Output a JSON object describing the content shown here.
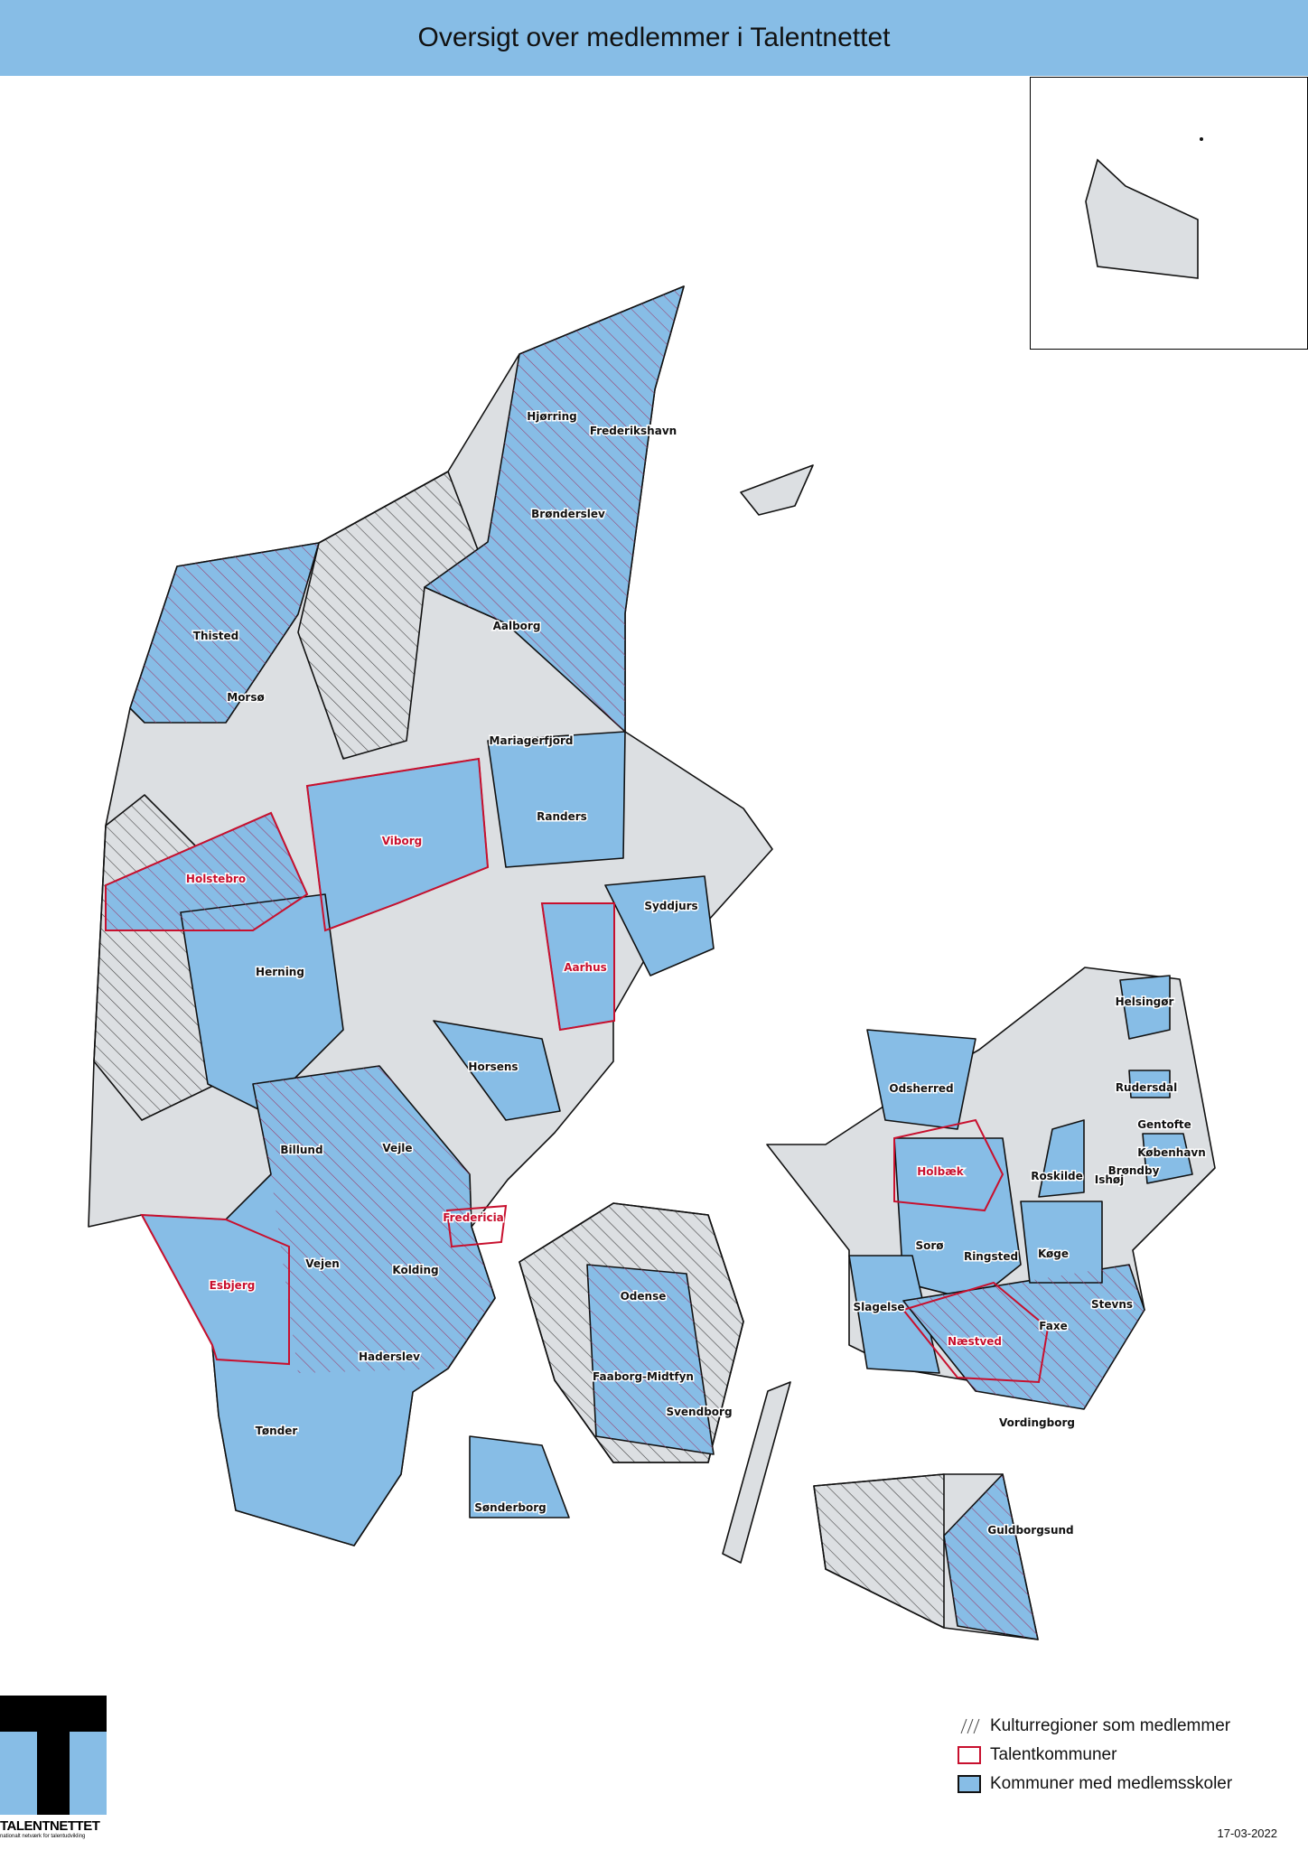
{
  "title": "Oversigt over medlemmer i Talentnettet",
  "colors": {
    "member_blue": "#87bde6",
    "land_grey": "#dcdfe2",
    "talent_red": "#c8102e",
    "header_blue": "#87bde6"
  },
  "labels": {
    "hjorring": "Hjørring",
    "frederikshavn": "Frederikshavn",
    "bronderslev": "Brønderslev",
    "aalborg": "Aalborg",
    "thisted": "Thisted",
    "morso": "Morsø",
    "mariagerfjord": "Mariagerfjord",
    "randers": "Randers",
    "viborg": "Viborg",
    "holstebro": "Holstebro",
    "syddjurs": "Syddjurs",
    "aarhus": "Aarhus",
    "herning": "Herning",
    "horsens": "Horsens",
    "billund": "Billund",
    "vejle": "Vejle",
    "fredericia": "Fredericia",
    "esbjerg": "Esbjerg",
    "vejen": "Vejen",
    "kolding": "Kolding",
    "haderslev": "Haderslev",
    "tonder": "Tønder",
    "sonderborg": "Sønderborg",
    "odense": "Odense",
    "faaborg": "Faaborg-Midtfyn",
    "svendborg": "Svendborg",
    "odsherred": "Odsherred",
    "holbaek": "Holbæk",
    "soro": "Sorø",
    "ringsted": "Ringsted",
    "koge": "Køge",
    "slagelse": "Slagelse",
    "naestved": "Næstved",
    "faxe": "Faxe",
    "stevns": "Stevns",
    "vordingborg": "Vordingborg",
    "guldborgsund": "Guldborgsund",
    "helsingor": "Helsingør",
    "rudersdal": "Rudersdal",
    "gentofte": "Gentofte",
    "kobenhavn": "København",
    "brondby": "Brøndby",
    "roskilde": "Roskilde",
    "ishoj": "Ishøj"
  },
  "legend": {
    "kulturregioner": "Kulturregioner som medlemmer",
    "talentkommuner": "Talentkommuner",
    "medlemsskoler": "Kommuner med medlemsskoler"
  },
  "logo": {
    "name": "TALENTNETTET",
    "tagline": "nationalt netværk for talentudvikling"
  },
  "date": "17-03-2022"
}
